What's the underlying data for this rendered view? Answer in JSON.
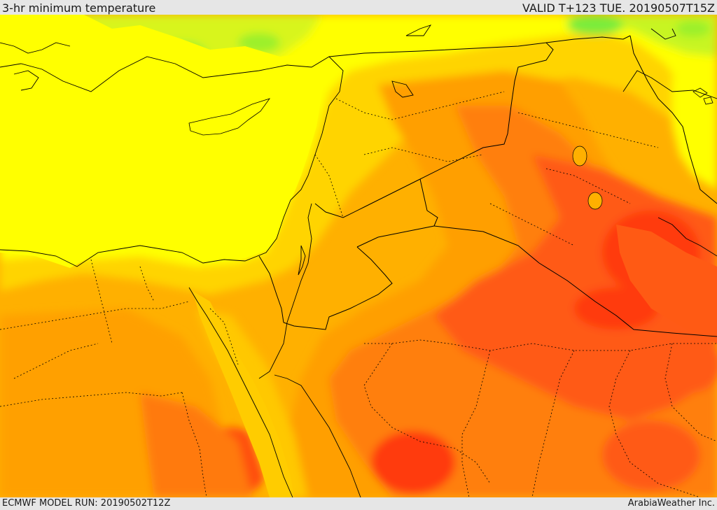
{
  "header": {
    "title": "3-hr minimum temperature",
    "valid": "VALID T+123 TUE. 20190507T15Z"
  },
  "footer": {
    "model_run": "ECMWF MODEL RUN: 20190502T12Z",
    "credit": "ArabiaWeather Inc."
  },
  "map": {
    "field": "3-hr minimum temperature",
    "colors": {
      "cool_green": "#23e05a",
      "light_green": "#9cf02a",
      "lime": "#d8f51a",
      "yellow": "#ffff00",
      "gold": "#ffdd00",
      "orange_light": "#ffc000",
      "orange": "#ffa500",
      "orange_dark": "#ff7f0a",
      "red_orange": "#ff5a14",
      "red": "#ff3010",
      "boundary": "#000000"
    }
  }
}
